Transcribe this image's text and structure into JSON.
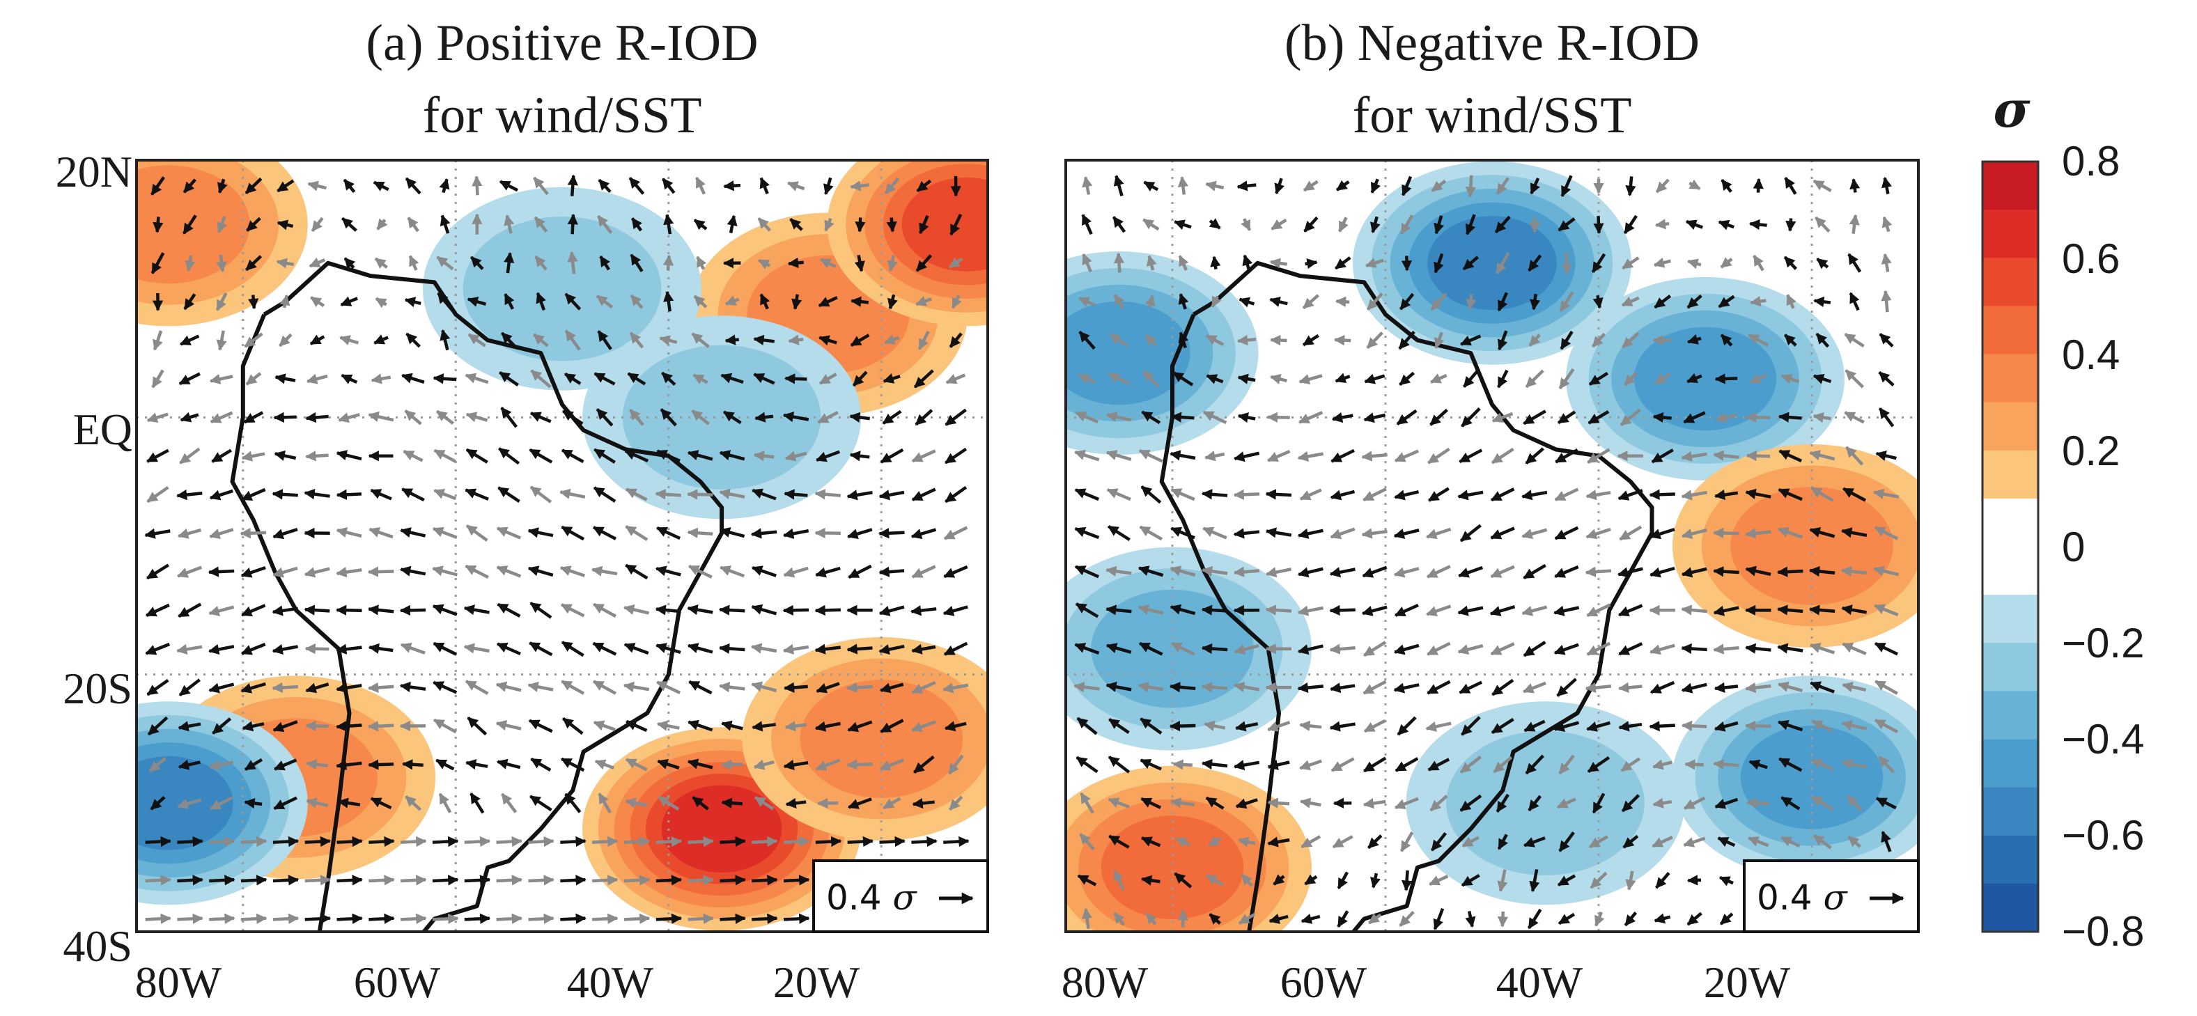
{
  "chart_data": [
    {
      "type": "filled-contour-with-wind-vectors",
      "panel": "a",
      "title_line1": "(a) Positive R-IOD",
      "title_line2": "for wind/SST",
      "x_ticks": [
        "80W",
        "60W",
        "40W",
        "20W"
      ],
      "y_ticks": [
        "20N",
        "EQ",
        "20S",
        "40S"
      ],
      "lon_range": [
        -90,
        -10
      ],
      "lat_range": [
        -40,
        20
      ],
      "reference_vector_label": "0.4",
      "reference_vector_symbol": "σ",
      "sst_anomaly_regions": [
        {
          "lon": -35,
          "lat": -32,
          "value": 0.6
        },
        {
          "lon": -20,
          "lat": -25,
          "value": 0.3
        },
        {
          "lon": -75,
          "lat": -28,
          "value": 0.3
        },
        {
          "lon": -25,
          "lat": 8,
          "value": 0.3
        },
        {
          "lon": -12,
          "lat": 15,
          "value": 0.5
        },
        {
          "lon": -87,
          "lat": 15,
          "value": 0.3
        },
        {
          "lon": -50,
          "lat": 10,
          "value": -0.2
        },
        {
          "lon": -35,
          "lat": 0,
          "value": -0.2
        },
        {
          "lon": -87,
          "lat": -30,
          "value": -0.5
        }
      ]
    },
    {
      "type": "filled-contour-with-wind-vectors",
      "panel": "b",
      "title_line1": "(b) Negative R-IOD",
      "title_line2": "for wind/SST",
      "x_ticks": [
        "80W",
        "60W",
        "40W",
        "20W"
      ],
      "y_ticks": [],
      "lon_range": [
        -90,
        -10
      ],
      "lat_range": [
        -40,
        20
      ],
      "reference_vector_label": "0.4",
      "reference_vector_symbol": "σ",
      "sst_anomaly_regions": [
        {
          "lon": -50,
          "lat": 12,
          "value": -0.5
        },
        {
          "lon": -30,
          "lat": 3,
          "value": -0.4
        },
        {
          "lon": -85,
          "lat": 5,
          "value": -0.4
        },
        {
          "lon": -80,
          "lat": -18,
          "value": -0.3
        },
        {
          "lon": -20,
          "lat": -28,
          "value": -0.4
        },
        {
          "lon": -45,
          "lat": -30,
          "value": -0.2
        },
        {
          "lon": -20,
          "lat": -10,
          "value": 0.3
        },
        {
          "lon": -80,
          "lat": -35,
          "value": 0.4
        }
      ]
    }
  ],
  "colorbar": {
    "symbol": "σ",
    "tick_labels": [
      "0.8",
      "0.6",
      "0.4",
      "0.2",
      "0",
      "−0.2",
      "−0.4",
      "−0.6",
      "−0.8"
    ],
    "levels": [
      {
        "value": 0.75,
        "color": "#c81b24"
      },
      {
        "value": 0.65,
        "color": "#de2d26"
      },
      {
        "value": 0.55,
        "color": "#ea4a2c"
      },
      {
        "value": 0.45,
        "color": "#f26b3a"
      },
      {
        "value": 0.35,
        "color": "#f5884a"
      },
      {
        "value": 0.25,
        "color": "#f8a45c"
      },
      {
        "value": 0.15,
        "color": "#fbc57c"
      },
      {
        "value": 0.05,
        "color": "#ffffff"
      },
      {
        "value": -0.05,
        "color": "#ffffff"
      },
      {
        "value": -0.15,
        "color": "#b4dcea"
      },
      {
        "value": -0.25,
        "color": "#8ec9e0"
      },
      {
        "value": -0.35,
        "color": "#68b3d5"
      },
      {
        "value": -0.45,
        "color": "#4a9dcc"
      },
      {
        "value": -0.55,
        "color": "#3a86c0"
      },
      {
        "value": -0.65,
        "color": "#2a6eb2"
      },
      {
        "value": -0.75,
        "color": "#1f57a2"
      }
    ]
  }
}
